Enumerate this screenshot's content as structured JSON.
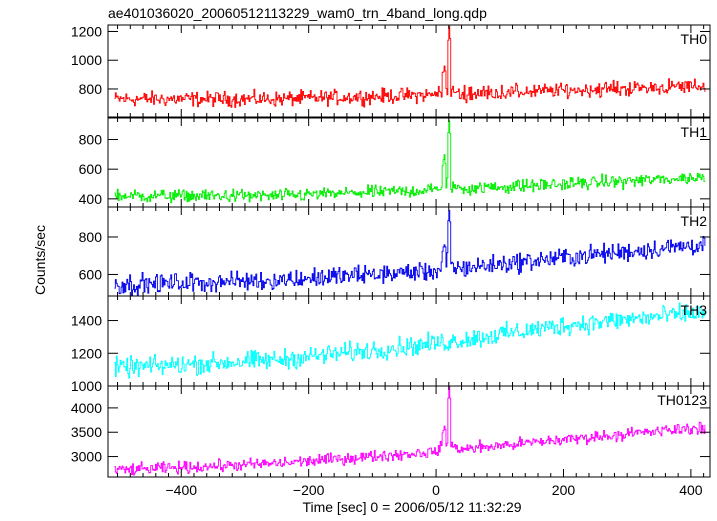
{
  "chart_data": {
    "type": "line",
    "title": "ae401036020_20060512113229_wam0_trn_4band_long.qdp",
    "xlabel": "Time [sec] 0 = 2006/05/12 11:32:29",
    "ylabel": "Counts/sec",
    "xlim": [
      -515,
      430
    ],
    "xticks": [
      -400,
      -200,
      0,
      200,
      400
    ],
    "panels": [
      {
        "name": "TH0",
        "color": "#ff0000",
        "ylim": [
          605,
          1245
        ],
        "yticks": [
          800,
          1000,
          1200
        ],
        "baseline_x": [
          -500,
          -250,
          0,
          200,
          420
        ],
        "baseline_y": [
          730,
          730,
          760,
          790,
          820
        ],
        "noise_amplitude": 30,
        "spikes": [
          {
            "x": 12,
            "y": 950
          },
          {
            "x": 20,
            "y": 1245
          }
        ]
      },
      {
        "name": "TH1",
        "color": "#00ee00",
        "ylim": [
          345,
          945
        ],
        "yticks": [
          400,
          600,
          800
        ],
        "baseline_x": [
          -500,
          -250,
          0,
          200,
          420
        ],
        "baseline_y": [
          420,
          420,
          460,
          500,
          545
        ],
        "noise_amplitude": 25,
        "spikes": [
          {
            "x": 12,
            "y": 690
          },
          {
            "x": 20,
            "y": 945
          }
        ]
      },
      {
        "name": "TH2",
        "color": "#0000ee",
        "ylim": [
          485,
          960
        ],
        "yticks": [
          600,
          800
        ],
        "baseline_x": [
          -500,
          -250,
          0,
          200,
          420
        ],
        "baseline_y": [
          545,
          570,
          620,
          690,
          760
        ],
        "noise_amplitude": 30,
        "spikes": [
          {
            "x": 12,
            "y": 760
          },
          {
            "x": 20,
            "y": 960
          }
        ]
      },
      {
        "name": "TH3",
        "color": "#00ffff",
        "ylim": [
          1000,
          1550
        ],
        "yticks": [
          1000,
          1200,
          1400
        ],
        "baseline_x": [
          -500,
          -250,
          0,
          200,
          420
        ],
        "baseline_y": [
          1110,
          1160,
          1260,
          1370,
          1450
        ],
        "noise_amplitude": 35,
        "spikes": []
      },
      {
        "name": "TH0123",
        "color": "#ff00ff",
        "ylim": [
          2580,
          4450
        ],
        "yticks": [
          3000,
          3500,
          4000
        ],
        "baseline_x": [
          -500,
          -250,
          0,
          200,
          420
        ],
        "baseline_y": [
          2720,
          2860,
          3100,
          3350,
          3600
        ],
        "noise_amplitude": 70,
        "spikes": [
          {
            "x": 12,
            "y": 3600
          },
          {
            "x": 20,
            "y": 4450
          }
        ]
      }
    ]
  }
}
